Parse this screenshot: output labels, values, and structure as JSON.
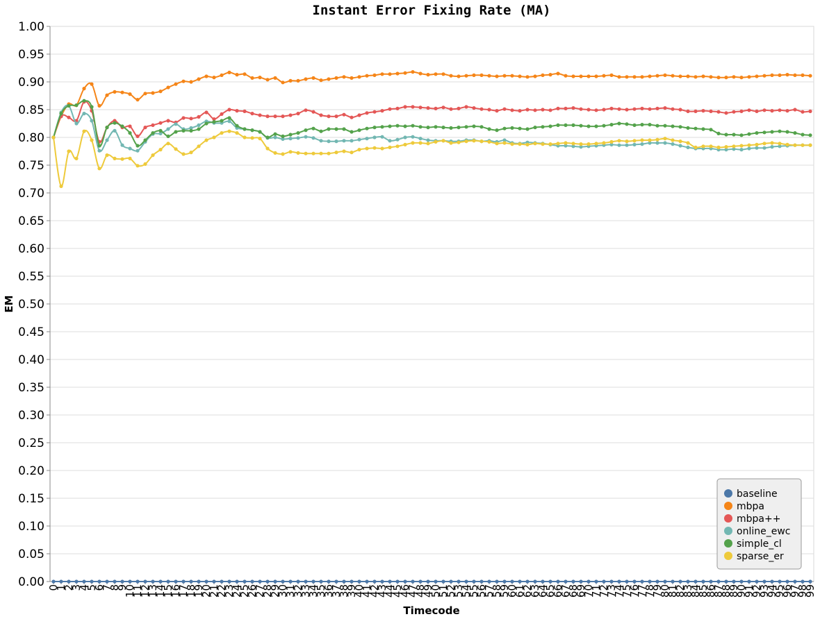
{
  "chart_data": {
    "type": "line",
    "title": "Instant Error Fixing Rate (MA)",
    "xlabel": "Timecode",
    "ylabel": "EM",
    "ylim": [
      0,
      1
    ],
    "y_ticks": [
      "0.00",
      "0.05",
      "0.10",
      "0.15",
      "0.20",
      "0.25",
      "0.30",
      "0.35",
      "0.40",
      "0.45",
      "0.50",
      "0.55",
      "0.60",
      "0.65",
      "0.70",
      "0.75",
      "0.80",
      "0.85",
      "0.90",
      "0.95",
      "1.00"
    ],
    "x": [
      0,
      1,
      2,
      3,
      4,
      5,
      6,
      7,
      8,
      9,
      10,
      11,
      12,
      13,
      14,
      15,
      16,
      17,
      18,
      19,
      20,
      21,
      22,
      23,
      24,
      25,
      26,
      27,
      28,
      29,
      30,
      31,
      32,
      33,
      34,
      35,
      36,
      37,
      38,
      39,
      40,
      41,
      42,
      43,
      44,
      45,
      46,
      47,
      48,
      49,
      50,
      51,
      52,
      53,
      54,
      55,
      56,
      57,
      58,
      59,
      60,
      61,
      62,
      63,
      64,
      65,
      66,
      67,
      68,
      69,
      70,
      71,
      72,
      73,
      74,
      75,
      76,
      77,
      78,
      79,
      80,
      81,
      82,
      83,
      84,
      85,
      86,
      87,
      88,
      89,
      90,
      91,
      92,
      93,
      94,
      95,
      96,
      97,
      98,
      99
    ],
    "legend_position": "bottom-right",
    "grid": true,
    "series": [
      {
        "name": "baseline",
        "color": "#4c78a8",
        "values": [
          0,
          0,
          0,
          0,
          0,
          0,
          0,
          0,
          0,
          0,
          0,
          0,
          0,
          0,
          0,
          0,
          0,
          0,
          0,
          0,
          0,
          0,
          0,
          0,
          0,
          0,
          0,
          0,
          0,
          0,
          0,
          0,
          0,
          0,
          0,
          0,
          0,
          0,
          0,
          0,
          0,
          0,
          0,
          0,
          0,
          0,
          0,
          0,
          0,
          0,
          0,
          0,
          0,
          0,
          0,
          0,
          0,
          0,
          0,
          0,
          0,
          0,
          0,
          0,
          0,
          0,
          0,
          0,
          0,
          0,
          0,
          0,
          0,
          0,
          0,
          0,
          0,
          0,
          0,
          0,
          0,
          0,
          0,
          0,
          0,
          0,
          0,
          0,
          0,
          0,
          0,
          0,
          0,
          0,
          0,
          0,
          0,
          0,
          0,
          0
        ]
      },
      {
        "name": "mbpa",
        "color": "#f58518",
        "values": [
          0.8,
          0.838,
          0.86,
          0.858,
          0.888,
          0.896,
          0.857,
          0.876,
          0.882,
          0.881,
          0.878,
          0.868,
          0.879,
          0.88,
          0.883,
          0.89,
          0.896,
          0.901,
          0.9,
          0.905,
          0.91,
          0.908,
          0.912,
          0.917,
          0.913,
          0.914,
          0.907,
          0.908,
          0.904,
          0.907,
          0.899,
          0.902,
          0.902,
          0.905,
          0.907,
          0.903,
          0.905,
          0.907,
          0.909,
          0.907,
          0.909,
          0.911,
          0.912,
          0.914,
          0.914,
          0.915,
          0.916,
          0.918,
          0.915,
          0.913,
          0.914,
          0.914,
          0.911,
          0.91,
          0.911,
          0.912,
          0.912,
          0.911,
          0.91,
          0.911,
          0.911,
          0.91,
          0.909,
          0.91,
          0.912,
          0.913,
          0.915,
          0.911,
          0.91,
          0.91,
          0.91,
          0.91,
          0.911,
          0.912,
          0.909,
          0.909,
          0.909,
          0.909,
          0.91,
          0.911,
          0.912,
          0.911,
          0.91,
          0.91,
          0.909,
          0.91,
          0.909,
          0.908,
          0.908,
          0.909,
          0.908,
          0.909,
          0.91,
          0.911,
          0.912,
          0.912,
          0.913,
          0.912,
          0.912,
          0.911
        ]
      },
      {
        "name": "mbpa++",
        "color": "#e45756",
        "values": [
          0.8,
          0.838,
          0.836,
          0.83,
          0.864,
          0.848,
          0.792,
          0.818,
          0.83,
          0.818,
          0.82,
          0.802,
          0.818,
          0.822,
          0.826,
          0.83,
          0.827,
          0.835,
          0.834,
          0.837,
          0.845,
          0.833,
          0.842,
          0.85,
          0.848,
          0.847,
          0.843,
          0.84,
          0.838,
          0.838,
          0.838,
          0.84,
          0.843,
          0.849,
          0.846,
          0.84,
          0.838,
          0.838,
          0.841,
          0.836,
          0.84,
          0.844,
          0.846,
          0.848,
          0.851,
          0.852,
          0.855,
          0.855,
          0.854,
          0.853,
          0.852,
          0.854,
          0.851,
          0.852,
          0.855,
          0.853,
          0.851,
          0.85,
          0.848,
          0.851,
          0.849,
          0.848,
          0.85,
          0.849,
          0.85,
          0.849,
          0.852,
          0.852,
          0.853,
          0.851,
          0.85,
          0.849,
          0.85,
          0.852,
          0.851,
          0.85,
          0.851,
          0.852,
          0.851,
          0.852,
          0.853,
          0.851,
          0.85,
          0.847,
          0.847,
          0.848,
          0.847,
          0.846,
          0.844,
          0.846,
          0.847,
          0.849,
          0.847,
          0.849,
          0.848,
          0.849,
          0.848,
          0.85,
          0.846,
          0.847
        ]
      },
      {
        "name": "online_ewc",
        "color": "#72b7b2",
        "values": [
          0.8,
          0.845,
          0.857,
          0.825,
          0.843,
          0.83,
          0.776,
          0.795,
          0.812,
          0.786,
          0.78,
          0.776,
          0.792,
          0.806,
          0.807,
          0.815,
          0.824,
          0.815,
          0.817,
          0.822,
          0.829,
          0.826,
          0.826,
          0.829,
          0.817,
          0.815,
          0.813,
          0.81,
          0.799,
          0.8,
          0.797,
          0.798,
          0.799,
          0.801,
          0.799,
          0.794,
          0.793,
          0.793,
          0.794,
          0.794,
          0.796,
          0.798,
          0.8,
          0.801,
          0.794,
          0.796,
          0.8,
          0.801,
          0.798,
          0.795,
          0.794,
          0.794,
          0.793,
          0.793,
          0.795,
          0.795,
          0.793,
          0.794,
          0.792,
          0.795,
          0.79,
          0.789,
          0.791,
          0.79,
          0.789,
          0.787,
          0.785,
          0.785,
          0.784,
          0.783,
          0.784,
          0.785,
          0.786,
          0.787,
          0.786,
          0.786,
          0.787,
          0.788,
          0.79,
          0.79,
          0.79,
          0.788,
          0.785,
          0.782,
          0.78,
          0.78,
          0.78,
          0.778,
          0.778,
          0.779,
          0.778,
          0.78,
          0.781,
          0.781,
          0.783,
          0.784,
          0.785,
          0.786,
          0.786,
          0.786
        ]
      },
      {
        "name": "simple_cl",
        "color": "#54a24b",
        "values": [
          0.8,
          0.843,
          0.857,
          0.858,
          0.866,
          0.855,
          0.785,
          0.818,
          0.826,
          0.82,
          0.808,
          0.785,
          0.795,
          0.808,
          0.812,
          0.802,
          0.81,
          0.812,
          0.812,
          0.815,
          0.825,
          0.828,
          0.83,
          0.835,
          0.821,
          0.815,
          0.813,
          0.81,
          0.8,
          0.806,
          0.802,
          0.805,
          0.808,
          0.813,
          0.816,
          0.811,
          0.815,
          0.815,
          0.815,
          0.81,
          0.813,
          0.816,
          0.818,
          0.819,
          0.82,
          0.821,
          0.82,
          0.821,
          0.819,
          0.818,
          0.819,
          0.818,
          0.817,
          0.818,
          0.819,
          0.82,
          0.819,
          0.815,
          0.813,
          0.816,
          0.817,
          0.816,
          0.815,
          0.818,
          0.819,
          0.82,
          0.822,
          0.822,
          0.822,
          0.821,
          0.82,
          0.82,
          0.821,
          0.823,
          0.825,
          0.824,
          0.822,
          0.823,
          0.823,
          0.821,
          0.821,
          0.82,
          0.819,
          0.817,
          0.816,
          0.815,
          0.814,
          0.807,
          0.805,
          0.805,
          0.804,
          0.806,
          0.808,
          0.809,
          0.81,
          0.811,
          0.81,
          0.808,
          0.805,
          0.804
        ]
      },
      {
        "name": "sparse_er",
        "color": "#eeca3b",
        "values": [
          0.8,
          0.712,
          0.775,
          0.762,
          0.811,
          0.795,
          0.744,
          0.768,
          0.762,
          0.761,
          0.762,
          0.749,
          0.752,
          0.768,
          0.778,
          0.789,
          0.779,
          0.77,
          0.773,
          0.784,
          0.795,
          0.8,
          0.808,
          0.811,
          0.808,
          0.8,
          0.799,
          0.798,
          0.78,
          0.772,
          0.77,
          0.774,
          0.772,
          0.771,
          0.771,
          0.771,
          0.771,
          0.773,
          0.775,
          0.773,
          0.778,
          0.78,
          0.781,
          0.78,
          0.782,
          0.784,
          0.787,
          0.79,
          0.79,
          0.789,
          0.792,
          0.794,
          0.79,
          0.791,
          0.793,
          0.794,
          0.793,
          0.792,
          0.789,
          0.79,
          0.788,
          0.788,
          0.787,
          0.789,
          0.788,
          0.788,
          0.789,
          0.79,
          0.789,
          0.788,
          0.788,
          0.789,
          0.79,
          0.792,
          0.794,
          0.793,
          0.794,
          0.795,
          0.795,
          0.796,
          0.798,
          0.795,
          0.793,
          0.79,
          0.782,
          0.784,
          0.784,
          0.782,
          0.783,
          0.784,
          0.785,
          0.786,
          0.787,
          0.789,
          0.79,
          0.789,
          0.787,
          0.786,
          0.786,
          0.786
        ]
      }
    ]
  }
}
